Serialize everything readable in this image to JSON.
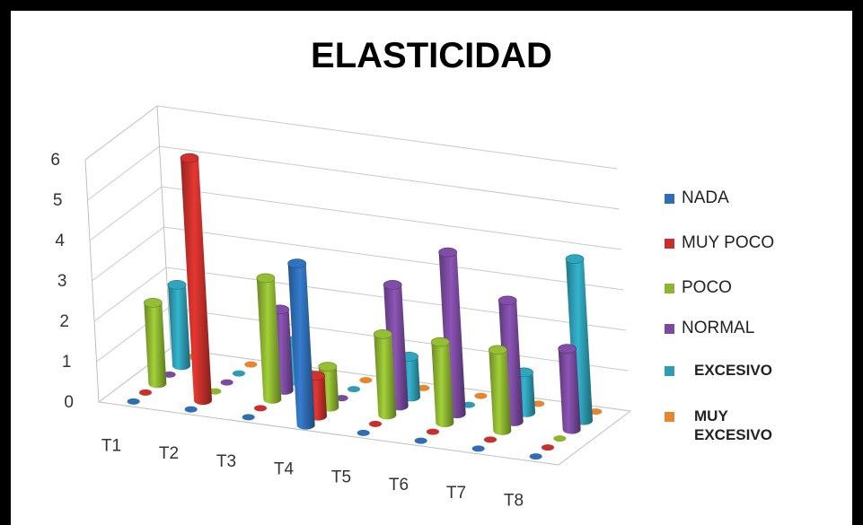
{
  "chart_data": {
    "type": "bar",
    "subtype": "3d-cylinder",
    "title": "ELASTICIDAD",
    "categories": [
      "T1",
      "T2",
      "T3",
      "T4",
      "T5",
      "T6",
      "T7",
      "T8"
    ],
    "y_ticks": [
      "0",
      "1",
      "2",
      "3",
      "4",
      "5",
      "6"
    ],
    "ylim": [
      0,
      6
    ],
    "grid": true,
    "legend_position": "right",
    "series": [
      {
        "name": "NADA",
        "color": "#2F6DB5",
        "values": [
          0,
          0,
          0,
          4,
          0,
          0,
          0,
          0
        ]
      },
      {
        "name": "MUY POCO",
        "color": "#C8302B",
        "values": [
          0,
          6,
          0,
          1,
          0,
          0,
          0,
          0
        ]
      },
      {
        "name": "POCO",
        "color": "#8DB531",
        "values": [
          2,
          0,
          3,
          1,
          2,
          2,
          2,
          0
        ]
      },
      {
        "name": "NORMAL",
        "color": "#7A4A9E",
        "values": [
          0,
          0,
          2,
          0,
          3,
          4,
          3,
          2
        ]
      },
      {
        "name": "EXCESIVO",
        "color": "#2E9DB4",
        "values": [
          2,
          0,
          1,
          0,
          1,
          0,
          1,
          4
        ]
      },
      {
        "name": "MUY EXCESIVO",
        "color": "#E8862E",
        "values": [
          0,
          0,
          0,
          0,
          0,
          0,
          0,
          0
        ]
      }
    ]
  }
}
